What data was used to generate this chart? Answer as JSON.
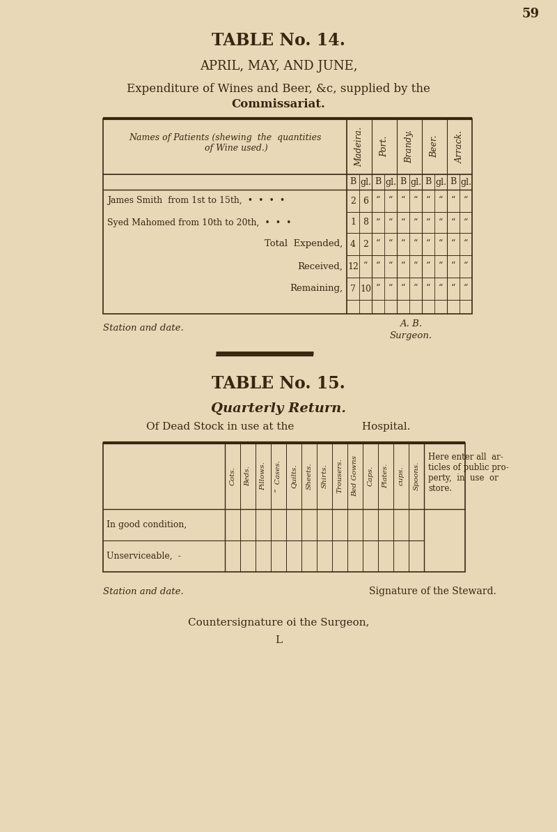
{
  "bg_color": "#e8d8b8",
  "text_color": "#3a2510",
  "page_number": "59",
  "table14_title": "TABLE No. 14.",
  "table14_subtitle": "APRIL, MAY, AND JUNE,",
  "table14_desc1": "Expenditure of Wines and Beer, &c, supplied by the",
  "table14_desc2": "Commissariat.",
  "table14_col_header_label": "Names of Patients (shewing  the  quantities\n        of Wine used.)",
  "table14_col_headers": [
    "Madeira.",
    "Port.",
    "Brandy.",
    "Beer.",
    "Arrack."
  ],
  "table14_rows": [
    [
      "James Smith  from 1st to 15th,  •  •  •  •",
      "2",
      "6",
      "“",
      "“",
      "“",
      "“",
      "“",
      "“",
      "“",
      "“"
    ],
    [
      "Syed Mahomed from 10th to 20th,  •  •  •",
      "1",
      "8",
      "“",
      "“",
      "“",
      "“",
      "“",
      "“",
      "“",
      "“"
    ],
    [
      "Total  Expended,",
      "4",
      "2",
      "“",
      "“",
      "“",
      "“",
      "“",
      "“",
      "“",
      "“"
    ],
    [
      "Received,",
      "12",
      "“",
      "“",
      "“",
      "“",
      "“",
      "“",
      "“",
      "“",
      "“"
    ],
    [
      "Remaining,",
      "7",
      "10",
      "“",
      "“",
      "“",
      "“",
      "“",
      "“",
      "“",
      "“"
    ]
  ],
  "table14_footer_left": "Station and date.",
  "table14_footer_ab": "A. B.",
  "table14_footer_surgeon": "Surgeon.",
  "table15_title": "TABLE No. 15.",
  "table15_subtitle": "Quarterly Return.",
  "table15_desc": "Of Dead Stock in use at the                    Hospital.",
  "table15_col_headers": [
    "Cots.",
    "Beds.",
    "Pillows.",
    "“  Cases.",
    "Quilts.",
    "Sheets.",
    "Shirts.",
    "Trousers.",
    "Bed Gowns",
    "Caps.",
    "Plates.",
    "cups.",
    "Spoons."
  ],
  "table15_note_lines": [
    "Here enter all  ar-",
    "ticles of public pro-",
    "perty,  in  use  or",
    "store."
  ],
  "table15_rows": [
    "In good condition,",
    "Unserviceable,  -"
  ],
  "table15_footer_left": "Station and date.",
  "table15_footer_right": "Signature of the Steward.",
  "table15_footer_bottom1": "Countersignature oi the Surgeon,",
  "table15_footer_bottom2": "L"
}
